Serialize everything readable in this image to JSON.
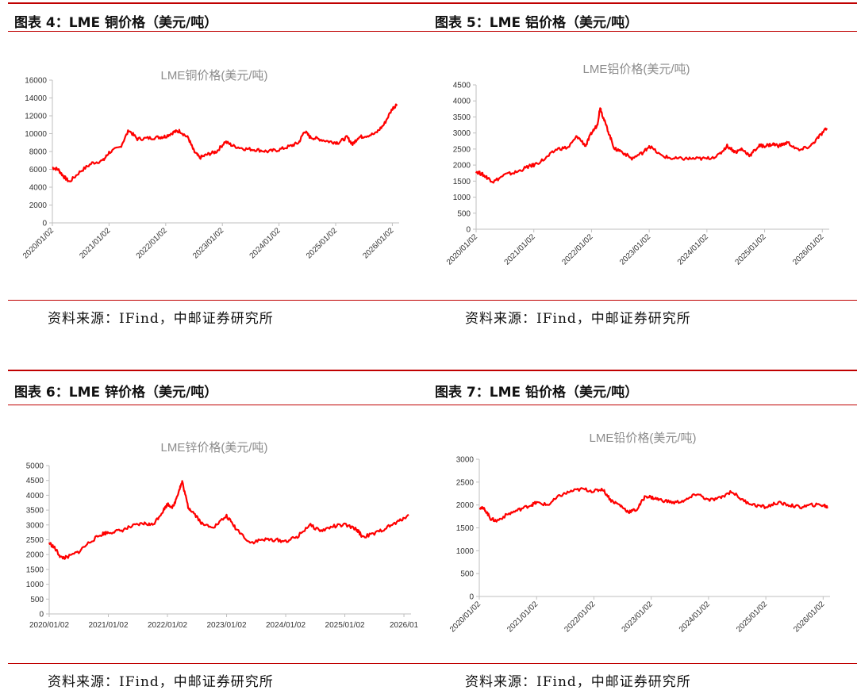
{
  "figures": [
    {
      "caption": "图表 4：LME 铜价格（美元/吨）",
      "source": "资料来源：IFind，中邮证券研究所"
    },
    {
      "caption": "图表 5：LME 铝价格（美元/吨）",
      "source": "资料来源：IFind，中邮证券研究所"
    },
    {
      "caption": "图表 6：LME 锌价格（美元/吨）",
      "source": "资料来源：IFind，中邮证券研究所"
    },
    {
      "caption": "图表 7：LME 铅价格（美元/吨）",
      "source": "资料来源：IFind，中邮证券研究所"
    }
  ],
  "colors": {
    "line": "#ff0000",
    "accent": "#c00000",
    "axis": "#bfbfbf",
    "title": "#8c8c8c"
  },
  "chart_data": [
    {
      "type": "line",
      "title": "LME铜价格(美元/吨)",
      "x_ticks": [
        "2020/01/02",
        "2021/01/02",
        "2022/01/02",
        "2023/01/02",
        "2024/01/02",
        "2025/01/02",
        "2026/01/02"
      ],
      "tick_rotated": true,
      "ylim": [
        0,
        16000
      ],
      "y_ticks": [
        0,
        2000,
        4000,
        6000,
        8000,
        10000,
        12000,
        14000,
        16000
      ],
      "grid": false,
      "series": [
        {
          "x": [
            2020.0,
            2020.1,
            2020.2,
            2020.3,
            2020.5,
            2020.7,
            2020.9,
            2021.0,
            2021.2,
            2021.35,
            2021.5,
            2021.7,
            2021.9,
            2022.0,
            2022.15,
            2022.25,
            2022.4,
            2022.5,
            2022.6,
            2022.75,
            2022.9,
            2023.05,
            2023.2,
            2023.4,
            2023.6,
            2023.8,
            2024.0,
            2024.2,
            2024.35,
            2024.45,
            2024.55,
            2024.7,
            2024.9,
            2025.05,
            2025.2,
            2025.3,
            2025.4,
            2025.5,
            2025.7,
            2025.85,
            2026.0,
            2026.08
          ],
          "values": [
            6200,
            6000,
            5200,
            4600,
            5800,
            6700,
            7000,
            7900,
            8500,
            10400,
            9400,
            9500,
            9600,
            9700,
            10200,
            10300,
            9500,
            8000,
            7300,
            7700,
            8000,
            9100,
            8600,
            8300,
            8200,
            8000,
            8200,
            8600,
            9000,
            10300,
            9600,
            9400,
            9100,
            9000,
            9600,
            8800,
            9600,
            9700,
            10000,
            11000,
            12800,
            13300
          ]
        }
      ]
    },
    {
      "type": "line",
      "title": "LME铝价格(美元/吨)",
      "x_ticks": [
        "2020/01/02",
        "2021/01/02",
        "2022/01/02",
        "2023/01/02",
        "2024/01/02",
        "2025/01/02",
        "2026/01/02"
      ],
      "tick_rotated": true,
      "ylim": [
        0,
        4500
      ],
      "y_ticks": [
        0,
        500,
        1000,
        1500,
        2000,
        2500,
        3000,
        3500,
        4000,
        4500
      ],
      "grid": false,
      "series": [
        {
          "x": [
            2020.0,
            2020.1,
            2020.2,
            2020.3,
            2020.5,
            2020.7,
            2020.9,
            2021.0,
            2021.2,
            2021.4,
            2021.6,
            2021.75,
            2021.9,
            2022.0,
            2022.1,
            2022.15,
            2022.2,
            2022.3,
            2022.4,
            2022.5,
            2022.7,
            2022.9,
            2023.0,
            2023.2,
            2023.4,
            2023.6,
            2023.8,
            2024.0,
            2024.2,
            2024.35,
            2024.5,
            2024.6,
            2024.75,
            2024.9,
            2025.0,
            2025.15,
            2025.25,
            2025.4,
            2025.6,
            2025.8,
            2025.95,
            2026.08
          ],
          "values": [
            1800,
            1720,
            1600,
            1480,
            1700,
            1780,
            1950,
            2000,
            2200,
            2500,
            2550,
            2900,
            2600,
            3000,
            3250,
            3800,
            3500,
            3000,
            2500,
            2450,
            2200,
            2400,
            2600,
            2300,
            2200,
            2200,
            2200,
            2200,
            2300,
            2600,
            2400,
            2500,
            2300,
            2600,
            2600,
            2650,
            2600,
            2700,
            2450,
            2600,
            2900,
            3150
          ]
        }
      ]
    },
    {
      "type": "line",
      "title": "LME锌价格(美元/吨)",
      "x_ticks": [
        "2020/01/02",
        "2021/01/02",
        "2022/01/02",
        "2023/01/02",
        "2024/01/02",
        "2025/01/02",
        "2026/01"
      ],
      "tick_rotated": false,
      "ylim": [
        0,
        5000
      ],
      "y_ticks": [
        0,
        500,
        1000,
        1500,
        2000,
        2500,
        3000,
        3500,
        4000,
        4500,
        5000
      ],
      "grid": false,
      "series": [
        {
          "x": [
            2020.0,
            2020.1,
            2020.2,
            2020.3,
            2020.5,
            2020.7,
            2020.9,
            2021.0,
            2021.2,
            2021.4,
            2021.6,
            2021.75,
            2021.9,
            2022.0,
            2022.1,
            2022.2,
            2022.25,
            2022.35,
            2022.45,
            2022.6,
            2022.8,
            2023.0,
            2023.15,
            2023.4,
            2023.6,
            2023.8,
            2024.0,
            2024.2,
            2024.4,
            2024.6,
            2024.8,
            2025.0,
            2025.2,
            2025.3,
            2025.5,
            2025.7,
            2025.9,
            2026.08
          ],
          "values": [
            2400,
            2200,
            1900,
            1900,
            2100,
            2450,
            2700,
            2750,
            2800,
            2950,
            3050,
            3000,
            3400,
            3700,
            3600,
            4200,
            4450,
            3600,
            3400,
            3000,
            2950,
            3300,
            2900,
            2400,
            2500,
            2500,
            2450,
            2600,
            3000,
            2800,
            2950,
            3000,
            2850,
            2600,
            2700,
            2900,
            3100,
            3350
          ]
        }
      ]
    },
    {
      "type": "line",
      "title": "LME铅价格(美元/吨)",
      "x_ticks": [
        "2020/01/02",
        "2021/01/02",
        "2022/01/02",
        "2023/01/02",
        "2024/01/02",
        "2025/01/02",
        "2026/01/02"
      ],
      "tick_rotated": true,
      "ylim": [
        0,
        3000
      ],
      "y_ticks": [
        0,
        500,
        1000,
        1500,
        2000,
        2500,
        3000
      ],
      "grid": false,
      "series": [
        {
          "x": [
            2020.0,
            2020.1,
            2020.2,
            2020.3,
            2020.5,
            2020.7,
            2020.9,
            2021.0,
            2021.2,
            2021.4,
            2021.6,
            2021.8,
            2022.0,
            2022.15,
            2022.3,
            2022.45,
            2022.6,
            2022.75,
            2022.9,
            2023.05,
            2023.2,
            2023.4,
            2023.6,
            2023.8,
            2024.0,
            2024.2,
            2024.4,
            2024.6,
            2024.8,
            2025.0,
            2025.2,
            2025.4,
            2025.6,
            2025.8,
            2026.0,
            2026.08
          ],
          "values": [
            1950,
            1900,
            1700,
            1650,
            1800,
            1900,
            2000,
            2050,
            2000,
            2200,
            2300,
            2350,
            2300,
            2350,
            2100,
            2000,
            1850,
            1900,
            2200,
            2150,
            2100,
            2050,
            2100,
            2250,
            2100,
            2150,
            2300,
            2100,
            2000,
            1950,
            2050,
            2000,
            1950,
            2000,
            2000,
            1950
          ]
        }
      ]
    }
  ]
}
